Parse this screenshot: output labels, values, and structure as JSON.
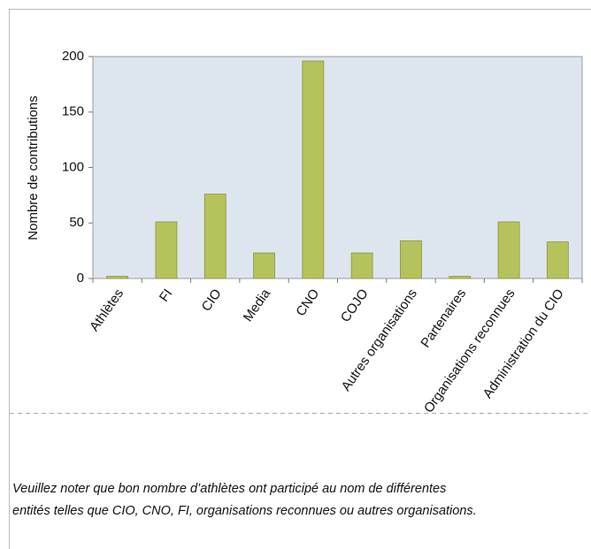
{
  "chart_data": {
    "type": "bar",
    "y_label": "Nombre de contributions",
    "categories": [
      "Athlètes",
      "FI",
      "CIO",
      "Media",
      "CNO",
      "COJO",
      "Autres organisations",
      "Partenaires",
      "Organisations reconnues",
      "Administration du CIO"
    ],
    "values": [
      2,
      51,
      76,
      23,
      196,
      23,
      34,
      2,
      51,
      33
    ],
    "color": "#b6c25b",
    "ylim": [
      0,
      200
    ],
    "yticks": [
      0,
      50,
      100,
      150,
      200
    ],
    "grid": false
  },
  "note": [
    "Veuillez noter que bon nombre d’athlètes ont participé au nom de différentes",
    "entités telles que CIO, CNO, FI, organisations reconnues ou autres organisations."
  ]
}
